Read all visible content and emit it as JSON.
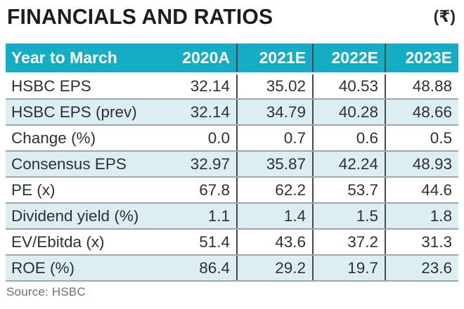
{
  "title": "FINANCIALS AND RATIOS",
  "currency_note": "(₹)",
  "source": "Source: HSBC",
  "colors": {
    "header_bg": "#15adc4",
    "alt_row_bg": "#ddeef3",
    "row_separator": "#9aa8ad",
    "column_divider": "#45494c",
    "title_text": "#1d1d1f",
    "header_text": "#ffffff",
    "body_text": "#2e3133",
    "source_text": "#6e7072"
  },
  "chart_data": {
    "type": "table",
    "title": "FINANCIALS AND RATIOS",
    "unit": "₹",
    "columns": [
      "Year to March",
      "2020A",
      "2021E",
      "2022E",
      "2023E"
    ],
    "rows": [
      {
        "label": "HSBC EPS",
        "values": [
          "32.14",
          "35.02",
          "40.53",
          "48.88"
        ]
      },
      {
        "label": "HSBC EPS (prev)",
        "values": [
          "32.14",
          "34.79",
          "40.28",
          "48.66"
        ]
      },
      {
        "label": "Change (%)",
        "values": [
          "0.0",
          "0.7",
          "0.6",
          "0.5"
        ]
      },
      {
        "label": "Consensus EPS",
        "values": [
          "32.97",
          "35.87",
          "42.24",
          "48.93"
        ]
      },
      {
        "label": "PE (x)",
        "values": [
          "67.8",
          "62.2",
          "53.7",
          "44.6"
        ]
      },
      {
        "label": "Dividend yield (%)",
        "values": [
          "1.1",
          "1.4",
          "1.5",
          "1.8"
        ]
      },
      {
        "label": "EV/Ebitda (x)",
        "values": [
          "51.4",
          "43.6",
          "37.2",
          "31.3"
        ]
      },
      {
        "label": "ROE (%)",
        "values": [
          "86.4",
          "29.2",
          "19.7",
          "23.6"
        ]
      }
    ],
    "source": "Source: HSBC"
  }
}
